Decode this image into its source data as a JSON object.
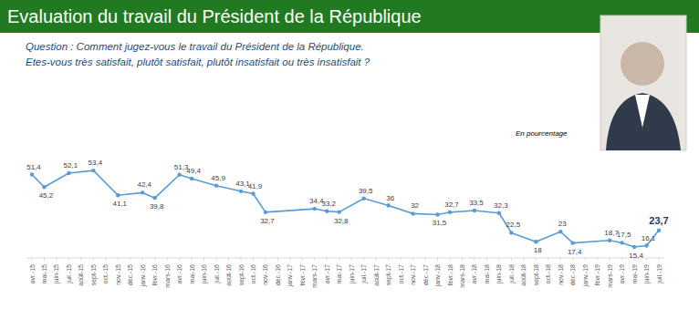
{
  "chart_data": {
    "type": "line",
    "title": "Evaluation du travail du Président de la République",
    "subtitle": [
      "Question : Comment jugez-vous le travail du Président de la République.",
      "Etes-vous très satisfait, plutôt satisfait, plutôt insatisfait ou très insatisfait ?"
    ],
    "annotations": [
      "En pourcentage"
    ],
    "categories": [
      "avr.-15",
      "mai-15",
      "juin-15",
      "juil.-15",
      "août-15",
      "sept-15",
      "oct.-15",
      "nov.-15",
      "déc.-15",
      "janv.-16",
      "févr.-16",
      "mars-16",
      "avr.-16",
      "mai-16",
      "juin-16",
      "juil.-16",
      "août-16",
      "sept-16",
      "oct.-16",
      "nov.-16",
      "déc.-16",
      "janv.-17",
      "févr.-17",
      "mars-17",
      "avr.-17",
      "mai-17",
      "juin-17",
      "juil.-17",
      "août-17",
      "sept-17",
      "oct.-17",
      "nov.-17",
      "déc.-17",
      "janv.-18",
      "févr.-18",
      "mars-18",
      "avr.-18",
      "mai-18",
      "juin-18",
      "juil.-18",
      "août-18",
      "sept-18",
      "oct.-18",
      "nov.-18",
      "déc.-18",
      "janv.-19",
      "févr.-19",
      "mars-19",
      "avr.-19",
      "mai-19",
      "juin-19",
      "juil.-19"
    ],
    "series": [
      {
        "color": "#5b9bd5",
        "marker": "circle",
        "x": [
          "avr.-15",
          "mai-15",
          "juil.-15",
          "sept-15",
          "nov.-15",
          "janv.-16",
          "févr.-16",
          "avr.-16",
          "mai-16",
          "juil.-16",
          "sept-16",
          "oct.-16",
          "nov.-16",
          "mars-17",
          "avr.-17",
          "mai-17",
          "juil.-17",
          "sept-17",
          "nov.-17",
          "janv.-18",
          "févr.-18",
          "avr.-18",
          "juin-18",
          "juil.-18",
          "sept-18",
          "nov.-18",
          "déc.-18",
          "mars-19",
          "avr.-19",
          "mai-19",
          "juin-19",
          "juil.-19"
        ],
        "values": [
          51.4,
          45.2,
          52.1,
          53.4,
          41.1,
          42.4,
          39.8,
          51.3,
          49.4,
          45.9,
          43.1,
          41.9,
          32.7,
          34.4,
          33.2,
          32.8,
          39.5,
          36,
          32,
          31.5,
          32.7,
          33.5,
          32.3,
          22.5,
          18,
          23,
          17.4,
          18.7,
          17.5,
          15.4,
          16.1,
          23.7
        ],
        "value_labels": [
          "51,4",
          "45,2",
          "52,1",
          "53,4",
          "41,1",
          "42,4",
          "39,8",
          "51,3",
          "49,4",
          "45,9",
          "43,1",
          "41,9",
          "32,7",
          "34,4",
          "33,2",
          "32,8",
          "39,5",
          "36",
          "32",
          "31,5",
          "32,7",
          "33,5",
          "32,3",
          "22,5",
          "18",
          "23",
          "17,4",
          "18,7",
          "17,5",
          "15,4",
          "16,1",
          "23,7"
        ]
      }
    ],
    "ylim": [
      10,
      60
    ],
    "data_labels": true,
    "grid": false,
    "tick_labels": "x"
  }
}
